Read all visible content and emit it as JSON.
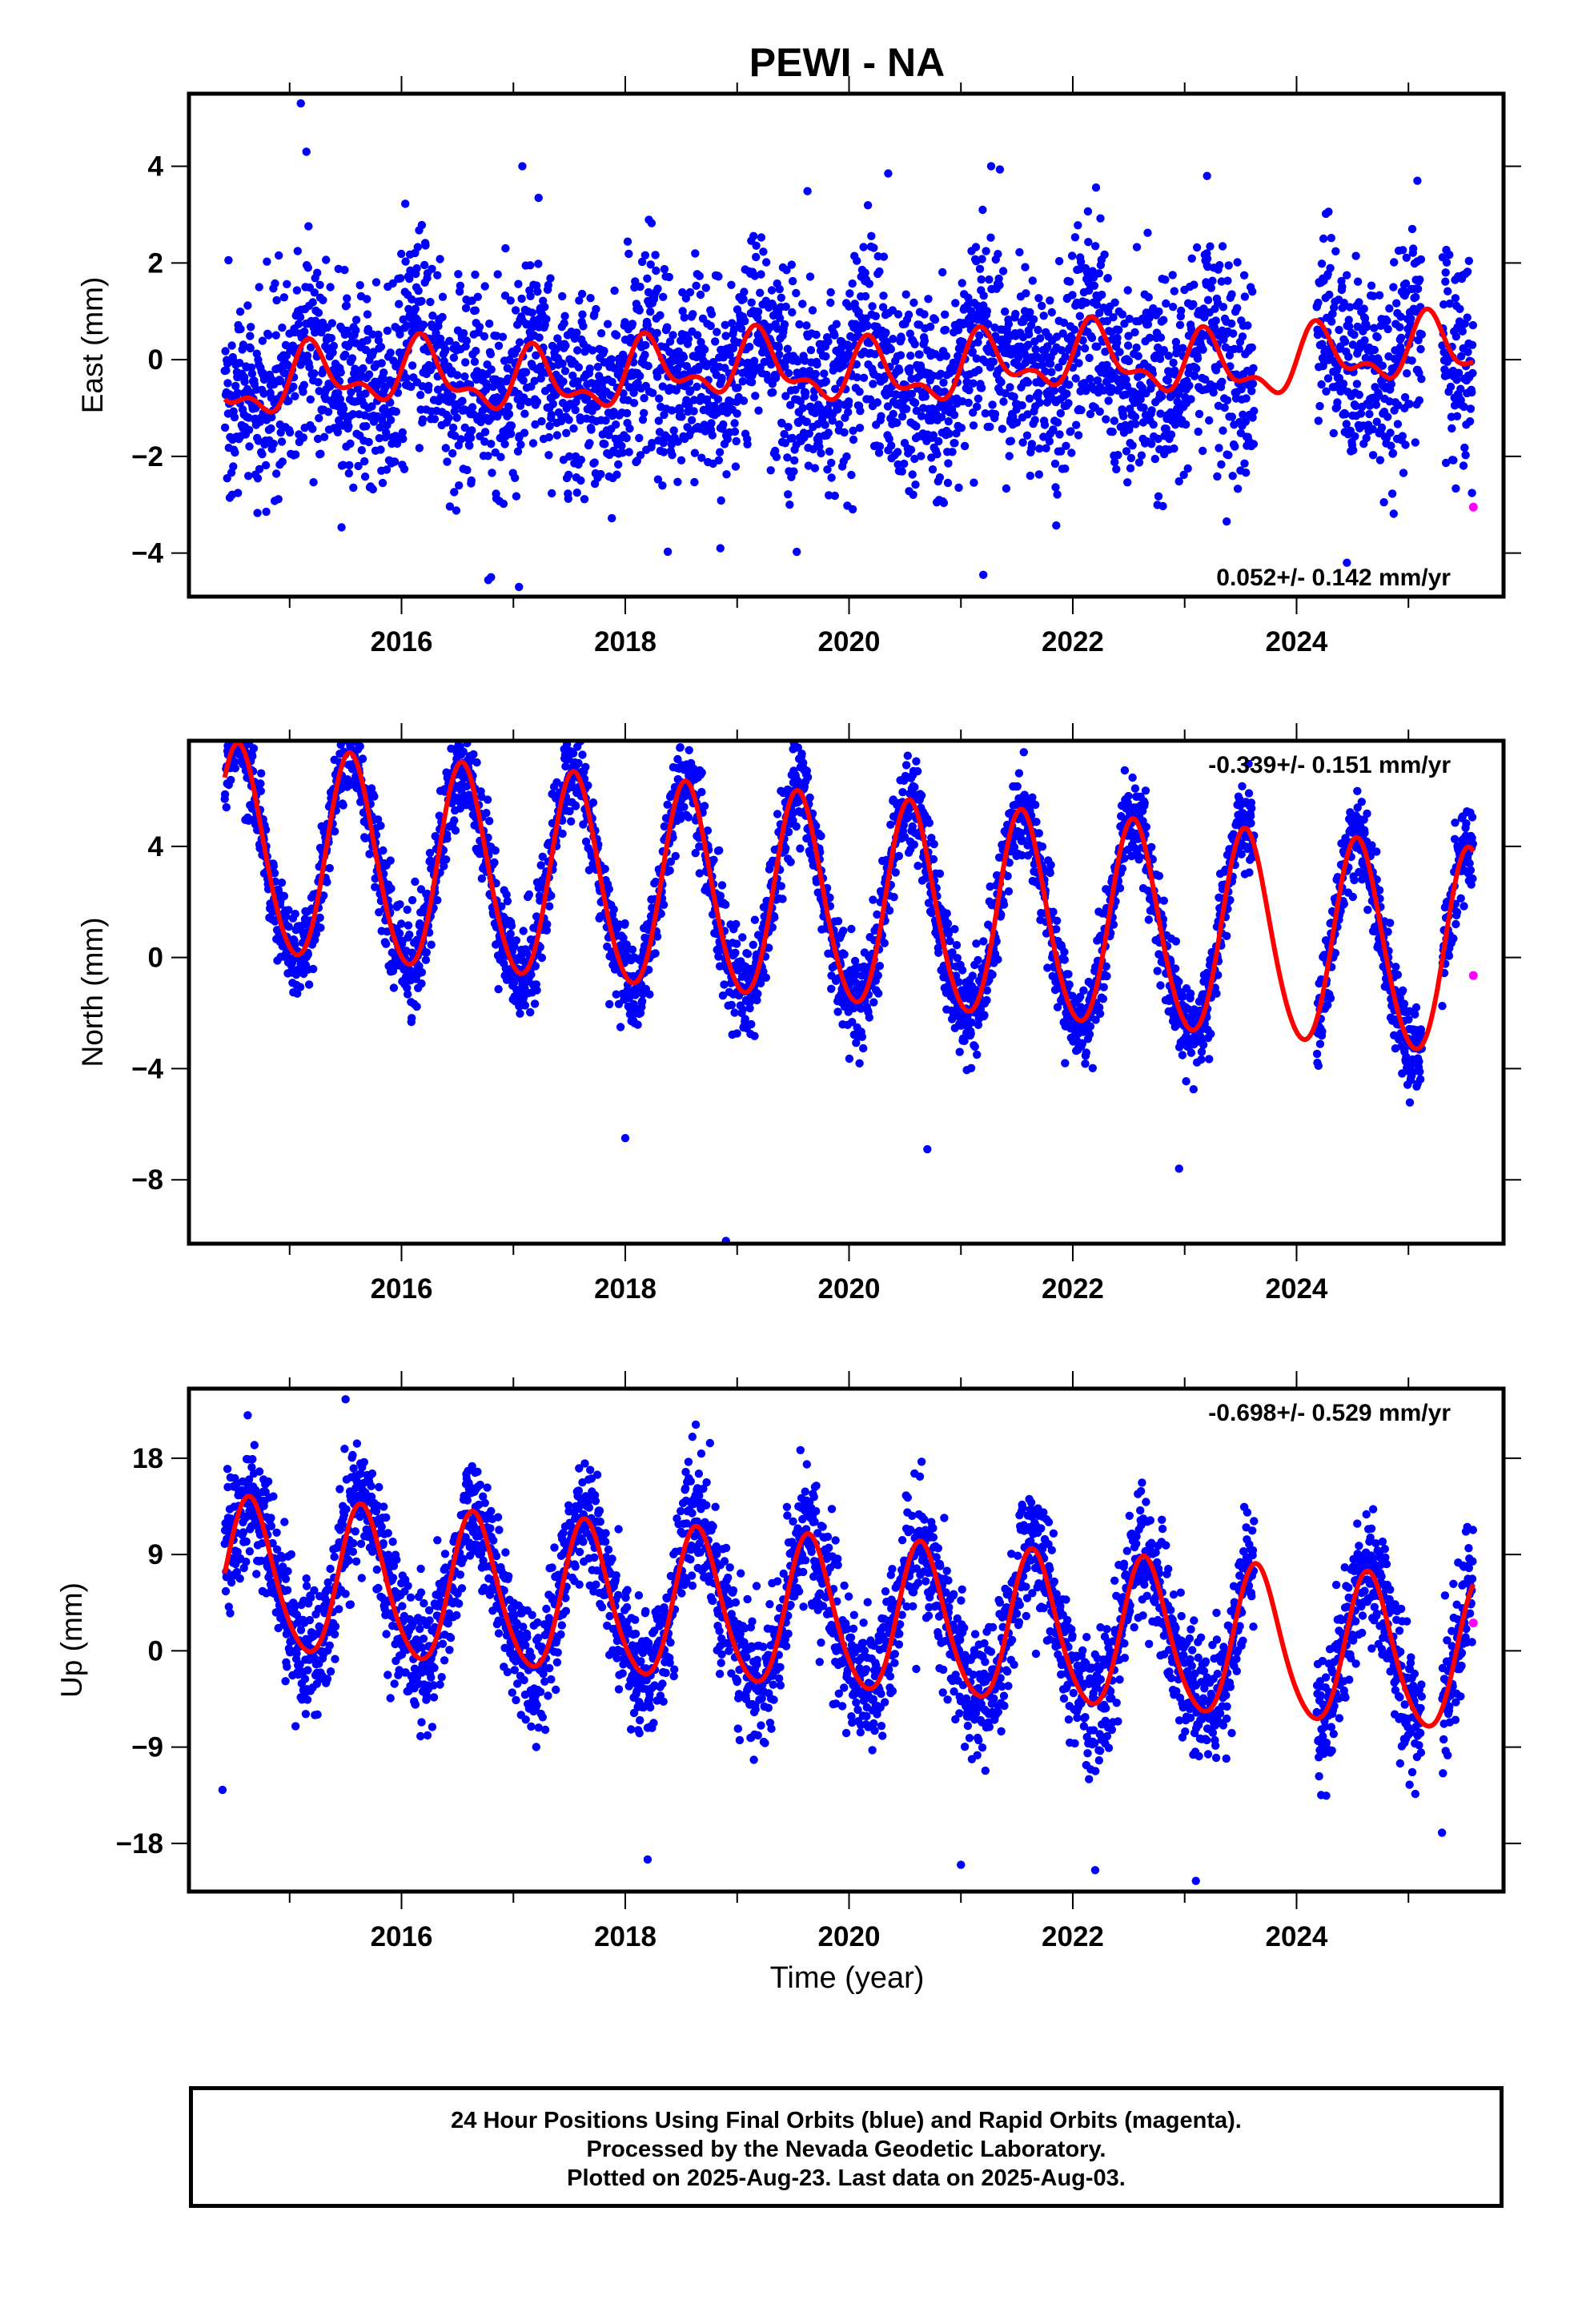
{
  "title": "PEWI - NA",
  "xlabel": "Time (year)",
  "footer": [
    "24 Hour Positions Using Final Orbits (blue) and Rapid Orbits (magenta).",
    "Processed by the Nevada Geodetic Laboratory.",
    "Plotted on 2025-Aug-23. Last data on 2025-Aug-03."
  ],
  "colors": {
    "final_orbits": "#0000ff",
    "rapid_orbits": "#ff00ff",
    "model": "#ff0000"
  },
  "chart_data": [
    {
      "type": "scatter",
      "ylabel": "East (mm)",
      "rate_label": "0.052+/- 0.142 mm/yr",
      "rate_position": "bottom-right",
      "xlim": [
        2014.1,
        2025.85
      ],
      "ylim": [
        -4.9,
        5.5
      ],
      "xticks": [
        2016,
        2018,
        2020,
        2022,
        2024
      ],
      "yticks": [
        -4,
        -2,
        0,
        2,
        4
      ],
      "ytick_labels": [
        "−4",
        "−2",
        "0",
        "2",
        "4"
      ],
      "data_span": [
        2014.42,
        2025.58
      ],
      "gaps": [
        [
          2023.62,
          2024.18
        ],
        [
          2025.12,
          2025.3
        ]
      ],
      "seasonal_model": {
        "offset": -0.2,
        "trend_per_year": 0.052,
        "annual_amp": 0.55,
        "annual_peak": 2015.2,
        "semiannual_amp": 0.3,
        "phase_jitter": 0.15
      },
      "scatter_sd": 1.05,
      "approx_daily_points": 3700,
      "outliers": [
        [
          2015.1,
          5.3
        ],
        [
          2015.15,
          4.3
        ],
        [
          2017.08,
          4.0
        ],
        [
          2016.8,
          -4.5
        ],
        [
          2017.05,
          -4.7
        ],
        [
          2018.85,
          -3.9
        ],
        [
          2021.2,
          -4.45
        ],
        [
          2020.35,
          3.85
        ],
        [
          2021.27,
          4.0
        ],
        [
          2023.2,
          3.8
        ],
        [
          2024.45,
          -4.2
        ],
        [
          2025.08,
          3.7
        ]
      ],
      "rapid_orbits": [
        [
          2025.58,
          -3.05
        ]
      ]
    },
    {
      "type": "scatter",
      "ylabel": "North (mm)",
      "rate_label": "-0.339+/- 0.151 mm/yr",
      "rate_position": "top-right",
      "xlim": [
        2014.1,
        2025.85
      ],
      "ylim": [
        -10.3,
        7.8
      ],
      "xticks": [
        2016,
        2018,
        2020,
        2022,
        2024
      ],
      "yticks": [
        -8,
        -4,
        0,
        4
      ],
      "ytick_labels": [
        "−8",
        "−4",
        "0",
        "4"
      ],
      "data_span": [
        2014.42,
        2025.58
      ],
      "gaps": [
        [
          2023.62,
          2024.18
        ],
        [
          2025.12,
          2025.3
        ]
      ],
      "seasonal_model": {
        "offset": 1.9,
        "trend_per_year": -0.339,
        "annual_amp": 3.7,
        "annual_peak": 2014.55,
        "semiannual_amp": 0.3,
        "phase_jitter": 0.0
      },
      "scatter_sd": 0.85,
      "approx_daily_points": 3700,
      "outliers": [
        [
          2018.9,
          -10.2
        ],
        [
          2019.5,
          7.5
        ],
        [
          2018,
          -6.5
        ],
        [
          2022.95,
          -7.6
        ],
        [
          2020.7,
          -6.9
        ],
        [
          2014.55,
          7.3
        ]
      ],
      "rapid_orbits": [
        [
          2025.58,
          -0.65
        ]
      ]
    },
    {
      "type": "scatter",
      "ylabel": "Up (mm)",
      "rate_label": "-0.698+/- 0.529 mm/yr",
      "rate_position": "top-right",
      "xlim": [
        2014.1,
        2025.85
      ],
      "ylim": [
        -22.5,
        24.5
      ],
      "xticks": [
        2016,
        2018,
        2020,
        2022,
        2024
      ],
      "yticks": [
        -18,
        -9,
        0,
        9,
        18
      ],
      "ytick_labels": [
        "−18",
        "−9",
        "0",
        "9",
        "18"
      ],
      "data_span": [
        2014.42,
        2025.58
      ],
      "gaps": [
        [
          2023.62,
          2024.18
        ],
        [
          2025.12,
          2025.3
        ]
      ],
      "seasonal_model": {
        "offset": 3.0,
        "trend_per_year": -0.698,
        "annual_amp": 7.0,
        "annual_peak": 2014.65,
        "semiannual_amp": 0.8,
        "phase_jitter": 0.0
      },
      "scatter_sd": 3.0,
      "approx_daily_points": 3700,
      "outliers": [
        [
          2015.5,
          23.5
        ],
        [
          2014.4,
          -13
        ],
        [
          2018.6,
          20
        ],
        [
          2018.2,
          -19.5
        ],
        [
          2021.0,
          -20
        ],
        [
          2022.2,
          -20.5
        ],
        [
          2023.1,
          -21.5
        ],
        [
          2025.3,
          -17
        ]
      ],
      "rapid_orbits": [
        [
          2025.58,
          2.6
        ]
      ]
    }
  ]
}
